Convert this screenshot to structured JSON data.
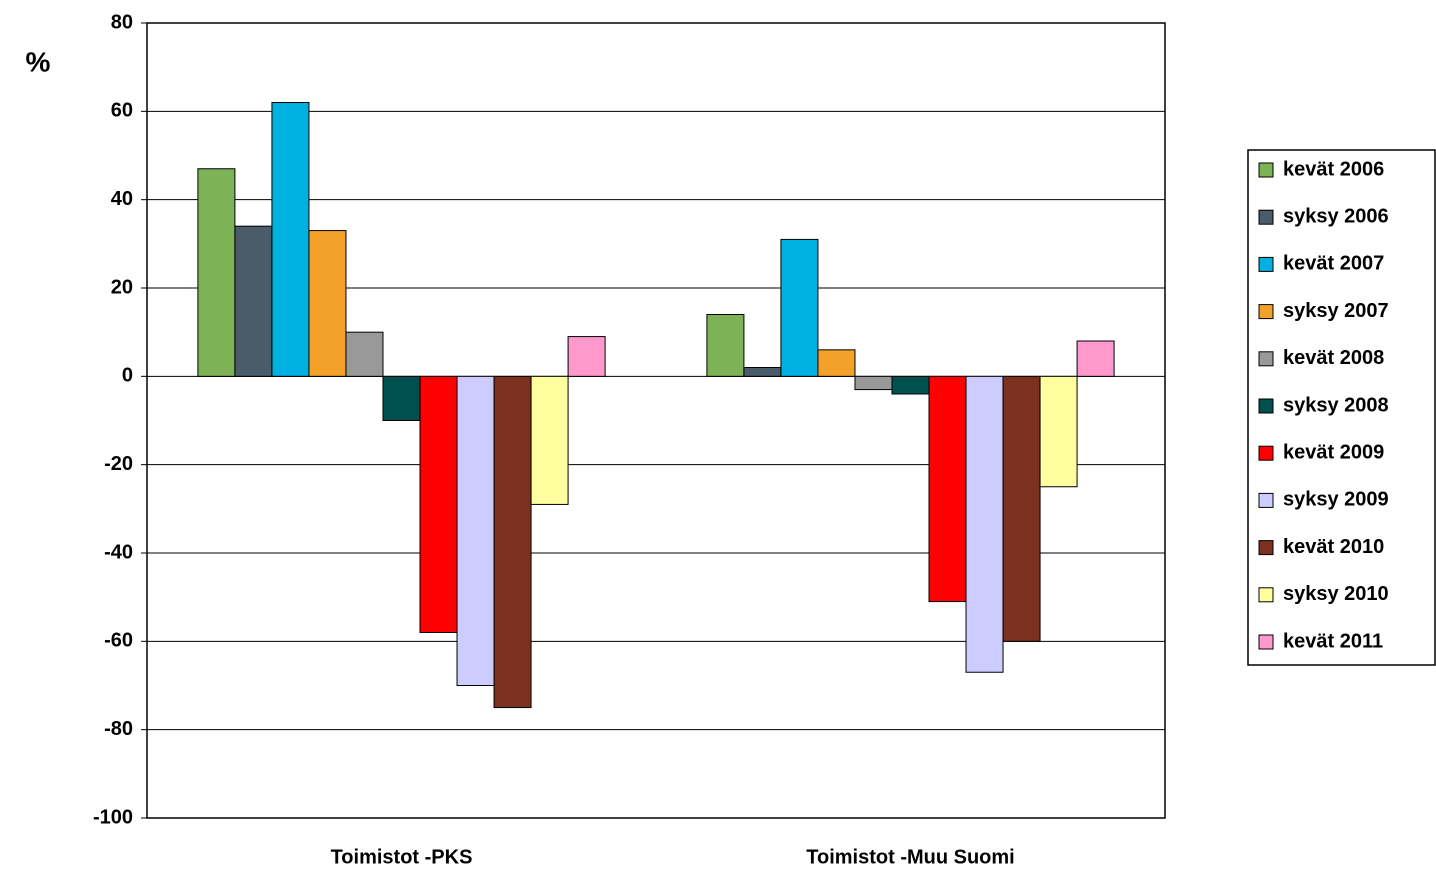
{
  "chart_data": {
    "type": "bar",
    "y_label": "%",
    "categories": [
      "Toimistot -PKS",
      "Toimistot -Muu Suomi"
    ],
    "series": [
      {
        "name": "kevät 2006",
        "color": "#7db356",
        "values": [
          47,
          14
        ]
      },
      {
        "name": "syksy 2006",
        "color": "#4a5b69",
        "values": [
          34,
          2
        ]
      },
      {
        "name": "kevät 2007",
        "color": "#00b0e0",
        "values": [
          62,
          31
        ]
      },
      {
        "name": "syksy 2007",
        "color": "#f4a12c",
        "values": [
          33,
          6
        ]
      },
      {
        "name": "kevät 2008",
        "color": "#999999",
        "values": [
          10,
          -3
        ]
      },
      {
        "name": "syksy 2008",
        "color": "#005050",
        "values": [
          -10,
          -4
        ]
      },
      {
        "name": "kevät 2009",
        "color": "#ff0000",
        "values": [
          -58,
          -51
        ]
      },
      {
        "name": "syksy 2009",
        "color": "#ccccff",
        "values": [
          -70,
          -67
        ]
      },
      {
        "name": "kevät 2010",
        "color": "#7b3020",
        "values": [
          -75,
          -60
        ]
      },
      {
        "name": "syksy 2010",
        "color": "#ffffa0",
        "values": [
          -29,
          -25
        ]
      },
      {
        "name": "kevät 2011",
        "color": "#ff99cc",
        "values": [
          9,
          8
        ]
      }
    ],
    "ylim": [
      -100,
      80
    ],
    "yticks": [
      -100,
      -80,
      -60,
      -40,
      -20,
      0,
      20,
      40,
      60,
      80
    ],
    "grid": true,
    "legend": "right"
  }
}
